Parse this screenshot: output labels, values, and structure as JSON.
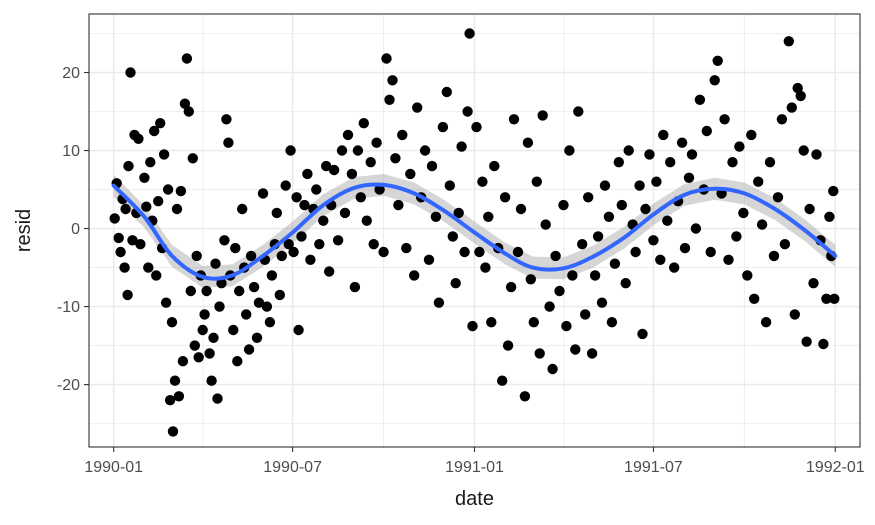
{
  "chart_data": {
    "type": "scatter",
    "title": "",
    "xlabel": "date",
    "ylabel": "resid",
    "x_type": "date",
    "xlim": [
      "1989-12-07",
      "1992-01-26"
    ],
    "ylim": [
      -28,
      27.5
    ],
    "x_ticks": [
      {
        "value": "1990-01-01",
        "label": "1990-01"
      },
      {
        "value": "1990-07-01",
        "label": "1990-07"
      },
      {
        "value": "1991-01-01",
        "label": "1991-01"
      },
      {
        "value": "1991-07-01",
        "label": "1991-07"
      },
      {
        "value": "1992-01-01",
        "label": "1992-01"
      }
    ],
    "y_ticks": [
      -20,
      -10,
      0,
      10,
      20
    ],
    "grid": true,
    "background": "#ffffff",
    "gridline_color": "#ebebeb",
    "border_color": "#333333",
    "point_color": "#000000",
    "smooth_color": "#3366ff",
    "smooth_band_color": "#999999",
    "series": [
      {
        "type": "points",
        "points": [
          [
            "1990-01-02",
            1.3
          ],
          [
            "1990-01-04",
            5.8
          ],
          [
            "1990-01-06",
            -1.2
          ],
          [
            "1990-01-08",
            -3.0
          ],
          [
            "1990-01-10",
            3.8
          ],
          [
            "1990-01-12",
            -5.0
          ],
          [
            "1990-01-13",
            2.5
          ],
          [
            "1990-01-15",
            -8.5
          ],
          [
            "1990-01-16",
            8.0
          ],
          [
            "1990-01-18",
            20.0
          ],
          [
            "1990-01-20",
            -1.5
          ],
          [
            "1990-01-22",
            12.0
          ],
          [
            "1990-01-24",
            2.0
          ],
          [
            "1990-01-26",
            11.5
          ],
          [
            "1990-01-28",
            -2.0
          ],
          [
            "1990-02-01",
            6.5
          ],
          [
            "1990-02-03",
            2.8
          ],
          [
            "1990-02-05",
            -5.0
          ],
          [
            "1990-02-07",
            8.5
          ],
          [
            "1990-02-09",
            1.0
          ],
          [
            "1990-02-11",
            12.5
          ],
          [
            "1990-02-13",
            -6.0
          ],
          [
            "1990-02-15",
            3.5
          ],
          [
            "1990-02-17",
            13.5
          ],
          [
            "1990-02-19",
            -2.5
          ],
          [
            "1990-02-21",
            9.5
          ],
          [
            "1990-02-23",
            -9.5
          ],
          [
            "1990-02-25",
            5.0
          ],
          [
            "1990-02-27",
            -22.0
          ],
          [
            "1990-03-01",
            -12.0
          ],
          [
            "1990-03-02",
            -26.0
          ],
          [
            "1990-03-04",
            -19.5
          ],
          [
            "1990-03-06",
            2.5
          ],
          [
            "1990-03-08",
            -21.5
          ],
          [
            "1990-03-10",
            4.8
          ],
          [
            "1990-03-12",
            -17.0
          ],
          [
            "1990-03-14",
            16.0
          ],
          [
            "1990-03-16",
            21.8
          ],
          [
            "1990-03-18",
            15.0
          ],
          [
            "1990-03-20",
            -8.0
          ],
          [
            "1990-03-22",
            9.0
          ],
          [
            "1990-03-24",
            -15.0
          ],
          [
            "1990-03-26",
            -3.5
          ],
          [
            "1990-03-28",
            -16.5
          ],
          [
            "1990-03-30",
            -6.0
          ],
          [
            "1990-04-01",
            -13.0
          ],
          [
            "1990-04-03",
            -11.0
          ],
          [
            "1990-04-05",
            -8.0
          ],
          [
            "1990-04-08",
            -16.0
          ],
          [
            "1990-04-10",
            -19.5
          ],
          [
            "1990-04-12",
            -14.0
          ],
          [
            "1990-04-14",
            -4.5
          ],
          [
            "1990-04-16",
            -21.8
          ],
          [
            "1990-04-18",
            -10.0
          ],
          [
            "1990-04-20",
            -7.0
          ],
          [
            "1990-04-23",
            -1.5
          ],
          [
            "1990-04-25",
            14.0
          ],
          [
            "1990-04-27",
            11.0
          ],
          [
            "1990-04-29",
            -6.0
          ],
          [
            "1990-05-02",
            -13.0
          ],
          [
            "1990-05-04",
            -2.5
          ],
          [
            "1990-05-06",
            -17.0
          ],
          [
            "1990-05-08",
            -8.0
          ],
          [
            "1990-05-11",
            2.5
          ],
          [
            "1990-05-13",
            -5.0
          ],
          [
            "1990-05-15",
            -11.0
          ],
          [
            "1990-05-18",
            -15.5
          ],
          [
            "1990-05-20",
            -3.5
          ],
          [
            "1990-05-23",
            -7.5
          ],
          [
            "1990-05-26",
            -14.0
          ],
          [
            "1990-05-28",
            -9.5
          ],
          [
            "1990-06-01",
            4.5
          ],
          [
            "1990-06-03",
            -4.0
          ],
          [
            "1990-06-05",
            -10.0
          ],
          [
            "1990-06-08",
            -12.0
          ],
          [
            "1990-06-10",
            -6.0
          ],
          [
            "1990-06-13",
            -2.0
          ],
          [
            "1990-06-15",
            2.0
          ],
          [
            "1990-06-18",
            -8.5
          ],
          [
            "1990-06-20",
            -3.5
          ],
          [
            "1990-06-24",
            5.5
          ],
          [
            "1990-06-27",
            -2.0
          ],
          [
            "1990-06-29",
            10.0
          ],
          [
            "1990-07-02",
            -3.0
          ],
          [
            "1990-07-05",
            4.0
          ],
          [
            "1990-07-07",
            -13.0
          ],
          [
            "1990-07-10",
            -1.0
          ],
          [
            "1990-07-13",
            3.0
          ],
          [
            "1990-07-16",
            7.0
          ],
          [
            "1990-07-19",
            -4.0
          ],
          [
            "1990-07-22",
            2.5
          ],
          [
            "1990-07-25",
            5.0
          ],
          [
            "1990-07-28",
            -2.0
          ],
          [
            "1990-08-01",
            1.0
          ],
          [
            "1990-08-04",
            8.0
          ],
          [
            "1990-08-07",
            -5.5
          ],
          [
            "1990-08-09",
            3.0
          ],
          [
            "1990-08-12",
            7.5
          ],
          [
            "1990-08-16",
            -1.5
          ],
          [
            "1990-08-20",
            10.0
          ],
          [
            "1990-08-23",
            2.0
          ],
          [
            "1990-08-26",
            12.0
          ],
          [
            "1990-08-30",
            7.0
          ],
          [
            "1990-09-02",
            -7.5
          ],
          [
            "1990-09-05",
            10.0
          ],
          [
            "1990-09-08",
            4.0
          ],
          [
            "1990-09-11",
            13.5
          ],
          [
            "1990-09-14",
            1.0
          ],
          [
            "1990-09-18",
            8.5
          ],
          [
            "1990-09-21",
            -2.0
          ],
          [
            "1990-09-24",
            11.0
          ],
          [
            "1990-09-27",
            5.0
          ],
          [
            "1990-10-01",
            -3.0
          ],
          [
            "1990-10-04",
            21.8
          ],
          [
            "1990-10-07",
            16.5
          ],
          [
            "1990-10-10",
            19.0
          ],
          [
            "1990-10-13",
            9.0
          ],
          [
            "1990-10-16",
            3.0
          ],
          [
            "1990-10-20",
            12.0
          ],
          [
            "1990-10-24",
            -2.5
          ],
          [
            "1990-10-28",
            7.0
          ],
          [
            "1990-11-01",
            -6.0
          ],
          [
            "1990-11-04",
            15.5
          ],
          [
            "1990-11-08",
            4.0
          ],
          [
            "1990-11-12",
            10.0
          ],
          [
            "1990-11-16",
            -4.0
          ],
          [
            "1990-11-19",
            8.0
          ],
          [
            "1990-11-23",
            1.5
          ],
          [
            "1990-11-26",
            -9.5
          ],
          [
            "1990-11-30",
            13.0
          ],
          [
            "1990-12-04",
            17.5
          ],
          [
            "1990-12-07",
            5.5
          ],
          [
            "1990-12-10",
            -1.0
          ],
          [
            "1990-12-13",
            -7.0
          ],
          [
            "1990-12-16",
            2.0
          ],
          [
            "1990-12-19",
            10.5
          ],
          [
            "1990-12-22",
            -3.0
          ],
          [
            "1990-12-25",
            15.0
          ],
          [
            "1990-12-27",
            25.0
          ],
          [
            "1990-12-30",
            -12.5
          ],
          [
            "1991-01-03",
            13.0
          ],
          [
            "1991-01-06",
            -3.0
          ],
          [
            "1991-01-09",
            6.0
          ],
          [
            "1991-01-12",
            -5.0
          ],
          [
            "1991-01-15",
            1.5
          ],
          [
            "1991-01-18",
            -12.0
          ],
          [
            "1991-01-21",
            8.0
          ],
          [
            "1991-01-25",
            -2.5
          ],
          [
            "1991-01-29",
            -19.5
          ],
          [
            "1991-02-01",
            4.0
          ],
          [
            "1991-02-04",
            -15.0
          ],
          [
            "1991-02-07",
            -7.5
          ],
          [
            "1991-02-10",
            14.0
          ],
          [
            "1991-02-14",
            -3.0
          ],
          [
            "1991-02-17",
            2.5
          ],
          [
            "1991-02-21",
            -21.5
          ],
          [
            "1991-02-24",
            11.0
          ],
          [
            "1991-02-27",
            -6.5
          ],
          [
            "1991-03-02",
            -12.0
          ],
          [
            "1991-03-05",
            6.0
          ],
          [
            "1991-03-08",
            -16.0
          ],
          [
            "1991-03-11",
            14.5
          ],
          [
            "1991-03-14",
            0.5
          ],
          [
            "1991-03-18",
            -10.0
          ],
          [
            "1991-03-21",
            -18.0
          ],
          [
            "1991-03-24",
            -3.5
          ],
          [
            "1991-03-28",
            -8.0
          ],
          [
            "1991-04-01",
            3.0
          ],
          [
            "1991-04-04",
            -12.5
          ],
          [
            "1991-04-07",
            10.0
          ],
          [
            "1991-04-10",
            -6.0
          ],
          [
            "1991-04-13",
            -15.5
          ],
          [
            "1991-04-16",
            15.0
          ],
          [
            "1991-04-20",
            -2.0
          ],
          [
            "1991-04-23",
            -11.0
          ],
          [
            "1991-04-26",
            4.0
          ],
          [
            "1991-04-30",
            -16.0
          ],
          [
            "1991-05-03",
            -6.0
          ],
          [
            "1991-05-06",
            -1.0
          ],
          [
            "1991-05-10",
            -9.5
          ],
          [
            "1991-05-13",
            5.5
          ],
          [
            "1991-05-17",
            1.5
          ],
          [
            "1991-05-20",
            -12.0
          ],
          [
            "1991-05-23",
            -4.5
          ],
          [
            "1991-05-27",
            8.5
          ],
          [
            "1991-05-30",
            3.0
          ],
          [
            "1991-06-03",
            -7.0
          ],
          [
            "1991-06-06",
            10.0
          ],
          [
            "1991-06-10",
            0.5
          ],
          [
            "1991-06-13",
            -3.0
          ],
          [
            "1991-06-17",
            5.5
          ],
          [
            "1991-06-20",
            -13.5
          ],
          [
            "1991-06-23",
            2.5
          ],
          [
            "1991-06-27",
            9.5
          ],
          [
            "1991-07-01",
            -1.5
          ],
          [
            "1991-07-04",
            6.0
          ],
          [
            "1991-07-08",
            -4.0
          ],
          [
            "1991-07-11",
            12.0
          ],
          [
            "1991-07-15",
            1.0
          ],
          [
            "1991-07-18",
            8.5
          ],
          [
            "1991-07-22",
            -5.0
          ],
          [
            "1991-07-26",
            3.5
          ],
          [
            "1991-07-30",
            11.0
          ],
          [
            "1991-08-02",
            -2.5
          ],
          [
            "1991-08-06",
            6.5
          ],
          [
            "1991-08-09",
            9.5
          ],
          [
            "1991-08-13",
            0.0
          ],
          [
            "1991-08-17",
            16.5
          ],
          [
            "1991-08-21",
            5.0
          ],
          [
            "1991-08-24",
            12.5
          ],
          [
            "1991-08-28",
            -3.0
          ],
          [
            "1991-09-01",
            19.0
          ],
          [
            "1991-09-04",
            21.5
          ],
          [
            "1991-09-08",
            4.5
          ],
          [
            "1991-09-11",
            14.0
          ],
          [
            "1991-09-15",
            -4.0
          ],
          [
            "1991-09-19",
            8.5
          ],
          [
            "1991-09-23",
            -1.0
          ],
          [
            "1991-09-26",
            10.5
          ],
          [
            "1991-09-30",
            2.0
          ],
          [
            "1991-10-04",
            -6.0
          ],
          [
            "1991-10-08",
            12.0
          ],
          [
            "1991-10-11",
            -9.0
          ],
          [
            "1991-10-15",
            6.0
          ],
          [
            "1991-10-19",
            0.5
          ],
          [
            "1991-10-23",
            -12.0
          ],
          [
            "1991-10-27",
            8.5
          ],
          [
            "1991-10-31",
            -3.5
          ],
          [
            "1991-11-04",
            4.0
          ],
          [
            "1991-11-08",
            14.0
          ],
          [
            "1991-11-11",
            -2.0
          ],
          [
            "1991-11-15",
            24.0
          ],
          [
            "1991-11-18",
            15.5
          ],
          [
            "1991-11-21",
            -11.0
          ],
          [
            "1991-11-24",
            18.0
          ],
          [
            "1991-11-27",
            17.0
          ],
          [
            "1991-11-30",
            10.0
          ],
          [
            "1991-12-03",
            -14.5
          ],
          [
            "1991-12-06",
            2.5
          ],
          [
            "1991-12-10",
            -7.0
          ],
          [
            "1991-12-13",
            9.5
          ],
          [
            "1991-12-17",
            -1.5
          ],
          [
            "1991-12-20",
            -14.8
          ],
          [
            "1991-12-23",
            -9.0
          ],
          [
            "1991-12-26",
            1.5
          ],
          [
            "1991-12-28",
            -3.5
          ],
          [
            "1991-12-30",
            4.8
          ],
          [
            "1991-12-31",
            -9.0
          ]
        ]
      },
      {
        "type": "smooth",
        "points": [
          [
            "1990-01-01",
            5.5
          ],
          [
            "1990-02-01",
            1.5
          ],
          [
            "1990-03-01",
            -3.5
          ],
          [
            "1990-04-01",
            -6.2
          ],
          [
            "1990-05-01",
            -6.0
          ],
          [
            "1990-06-01",
            -3.5
          ],
          [
            "1990-07-01",
            -0.5
          ],
          [
            "1990-08-01",
            3.0
          ],
          [
            "1990-09-01",
            5.2
          ],
          [
            "1990-10-01",
            5.6
          ],
          [
            "1990-11-01",
            4.5
          ],
          [
            "1990-12-01",
            2.3
          ],
          [
            "1991-01-01",
            -0.5
          ],
          [
            "1991-02-01",
            -3.2
          ],
          [
            "1991-03-01",
            -5.0
          ],
          [
            "1991-04-01",
            -5.1
          ],
          [
            "1991-05-01",
            -3.6
          ],
          [
            "1991-06-01",
            -1.2
          ],
          [
            "1991-07-01",
            1.8
          ],
          [
            "1991-08-01",
            4.3
          ],
          [
            "1991-09-01",
            5.1
          ],
          [
            "1991-10-01",
            4.5
          ],
          [
            "1991-11-01",
            2.5
          ],
          [
            "1991-12-01",
            -0.2
          ],
          [
            "1992-01-01",
            -3.5
          ]
        ]
      }
    ]
  }
}
